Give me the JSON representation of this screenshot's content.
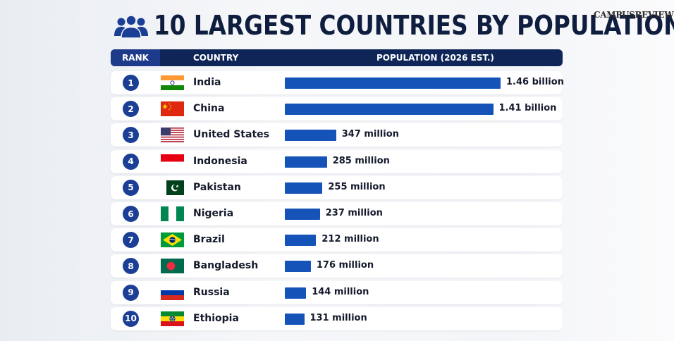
{
  "title": "10 LARGEST COUNTRIES BY POPULATION",
  "brand": "CAMPUSREVIEW",
  "header": {
    "rank": "RANK",
    "country": "COUNTRY",
    "population": "POPULATION (2026 EST.)"
  },
  "icons": {
    "title_icon": "people-group-icon"
  },
  "colors": {
    "bar": "#1553b8",
    "header": "#0f2558",
    "rank_badge": "#1c3f96",
    "title": "#0f1d3f"
  },
  "chart_data": {
    "type": "bar",
    "orientation": "horizontal",
    "title": "10 LARGEST COUNTRIES BY POPULATION",
    "xlabel": "POPULATION (2026 EST.)",
    "ylabel": "COUNTRY",
    "categories": [
      "India",
      "China",
      "United States",
      "Indonesia",
      "Pakistan",
      "Nigeria",
      "Brazil",
      "Bangladesh",
      "Russia",
      "Ethiopia"
    ],
    "ranks": [
      "1",
      "2",
      "3",
      "4",
      "5",
      "6",
      "7",
      "8",
      "9",
      "10"
    ],
    "values": [
      1460,
      1410,
      347,
      285,
      255,
      237,
      212,
      176,
      144,
      131
    ],
    "value_unit": "million",
    "data_labels": [
      "1.46 billion",
      "1.41 billion",
      "347 million",
      "285 million",
      "255 million",
      "237 million",
      "212 million",
      "176 million",
      "144 million",
      "131 million"
    ],
    "flags": [
      "india-flag-icon",
      "china-flag-icon",
      "usa-flag-icon",
      "indonesia-flag-icon",
      "pakistan-flag-icon",
      "nigeria-flag-icon",
      "brazil-flag-icon",
      "bangladesh-flag-icon",
      "russia-flag-icon",
      "ethiopia-flag-icon"
    ],
    "grid": false,
    "legend": "none"
  }
}
